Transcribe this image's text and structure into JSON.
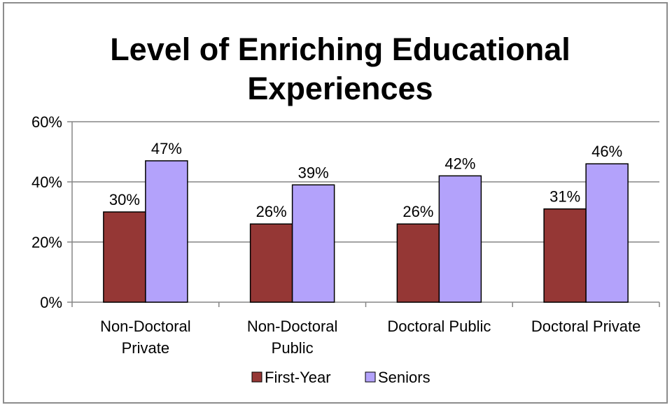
{
  "chart_data": {
    "type": "bar",
    "title_lines": [
      "Level of Enriching Educational",
      "Experiences"
    ],
    "categories": [
      [
        "Non-Doctoral",
        "Private"
      ],
      [
        "Non-Doctoral",
        "Public"
      ],
      [
        "Doctoral Public"
      ],
      [
        "Doctoral Private"
      ]
    ],
    "series": [
      {
        "name": "First-Year",
        "color": "#953735",
        "values": [
          30,
          26,
          26,
          31
        ],
        "labels": [
          "30%",
          "26%",
          "26%",
          "31%"
        ]
      },
      {
        "name": "Seniors",
        "color": "#b3a2fb",
        "values": [
          47,
          39,
          42,
          46
        ],
        "labels": [
          "47%",
          "39%",
          "42%",
          "46%"
        ]
      }
    ],
    "y_ticks": [
      "0%",
      "20%",
      "40%",
      "60%"
    ],
    "ylim": [
      0,
      60
    ],
    "grid": true,
    "legend_position": "bottom"
  }
}
